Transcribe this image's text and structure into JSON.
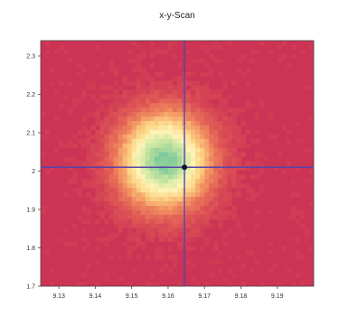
{
  "chart_data": {
    "type": "heatmap",
    "title": "x-y-Scan",
    "xlabel": "",
    "ylabel": "",
    "xlim": [
      9.125,
      9.2
    ],
    "ylim": [
      1.7,
      2.34
    ],
    "x_ticks": [
      "9.13",
      "9.14",
      "9.15",
      "9.16",
      "9.17",
      "9.18",
      "9.19"
    ],
    "y_ticks": [
      "1.7",
      "1.8",
      "1.9",
      "2",
      "2.1",
      "2.2",
      "2.3"
    ],
    "grid": false,
    "colormap": [
      "#cc3355",
      "#e05a55",
      "#f29060",
      "#fbd384",
      "#fff5b8",
      "#c8e6a0",
      "#7ec99a"
    ],
    "background_color": "#cc3355",
    "hotspot": {
      "x": 9.159,
      "y": 2.027,
      "sigma_x": 0.0085,
      "sigma_y": 0.085
    },
    "crosshair": {
      "x": 9.1645,
      "y": 2.01,
      "color": "#5544aa"
    },
    "marker": {
      "x": 9.1645,
      "y": 2.01,
      "color": "#111133"
    }
  }
}
